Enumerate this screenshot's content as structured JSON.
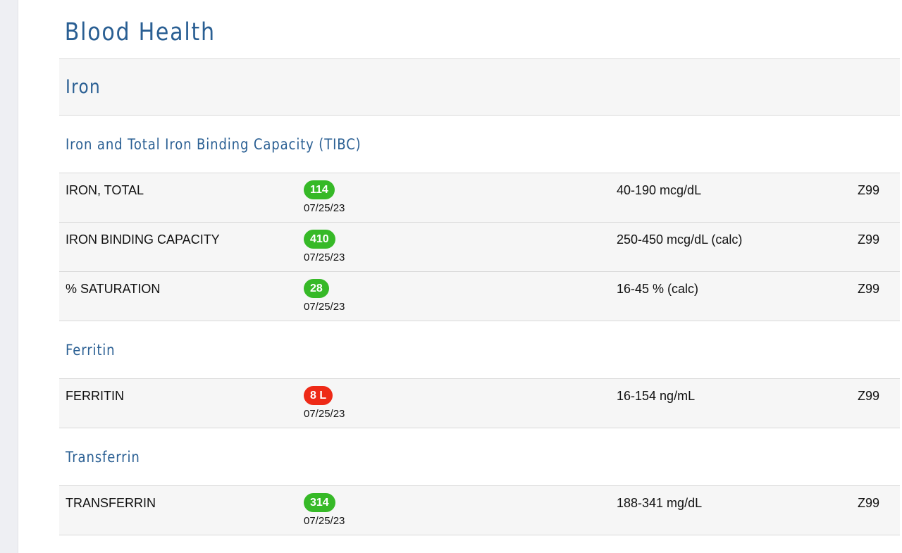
{
  "page": {
    "title": "Blood Health"
  },
  "section": {
    "title": "Iron"
  },
  "groups": [
    {
      "title": "Iron and Total Iron Binding Capacity (TIBC)",
      "rows": [
        {
          "name": "IRON, TOTAL",
          "value": "114",
          "status": "normal",
          "date": "07/25/23",
          "range": "40-190 mcg/dL",
          "lab": "Z99"
        },
        {
          "name": "IRON BINDING CAPACITY",
          "value": "410",
          "status": "normal",
          "date": "07/25/23",
          "range": "250-450 mcg/dL (calc)",
          "lab": "Z99"
        },
        {
          "name": "% SATURATION",
          "value": "28",
          "status": "normal",
          "date": "07/25/23",
          "range": "16-45 % (calc)",
          "lab": "Z99"
        }
      ]
    },
    {
      "title": "Ferritin",
      "rows": [
        {
          "name": "FERRITIN",
          "value": "8 L",
          "status": "low",
          "date": "07/25/23",
          "range": "16-154 ng/mL",
          "lab": "Z99"
        }
      ]
    },
    {
      "title": "Transferrin",
      "rows": [
        {
          "name": "TRANSFERRIN",
          "value": "314",
          "status": "normal",
          "date": "07/25/23",
          "range": "188-341 mg/dL",
          "lab": "Z99"
        }
      ]
    }
  ],
  "colors": {
    "heading": "#2a5f93",
    "normal_badge": "#36b927",
    "low_badge": "#ee2a17"
  }
}
